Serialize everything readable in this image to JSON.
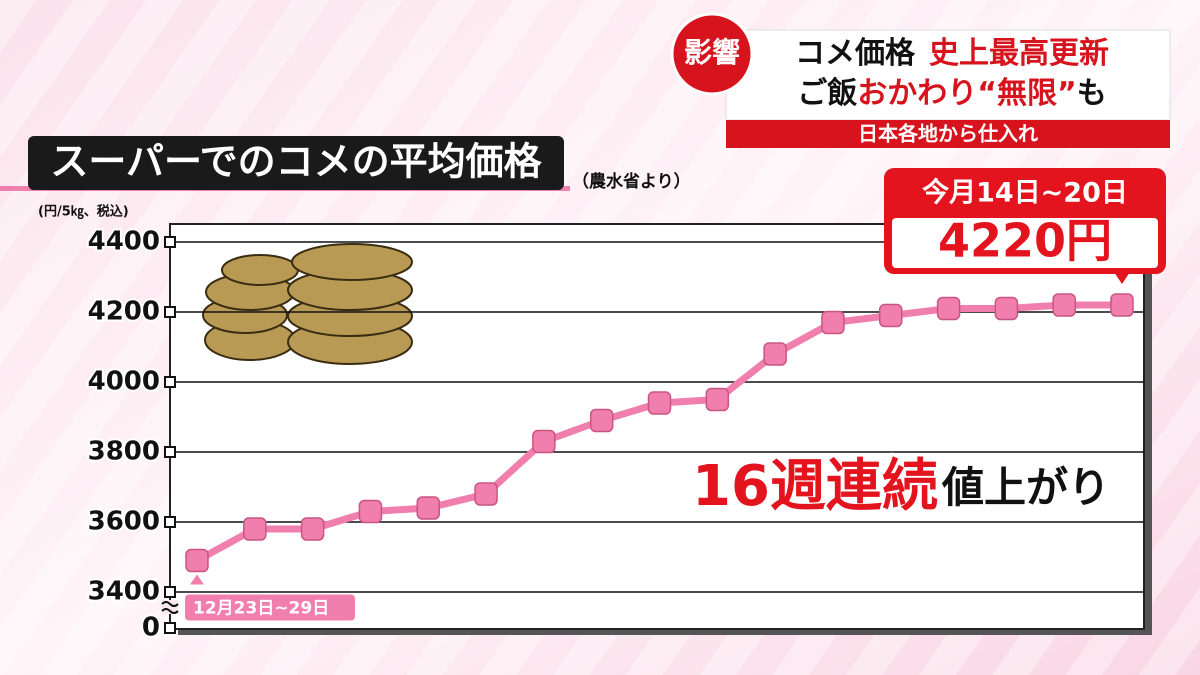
{
  "news_banner": {
    "badge": "影響",
    "line1": [
      "コメ価格",
      "史上最高更新"
    ],
    "line2": [
      "ご飯",
      "おかわり“無限”",
      "も"
    ],
    "subline": "日本各地から仕入れ"
  },
  "chart_data": {
    "type": "line",
    "title": "スーパーでのコメの平均価格",
    "source": "（農水省より）",
    "y_label": "(円/5㎏、税込)",
    "categories": [
      "12月23日~29日",
      null,
      null,
      null,
      null,
      null,
      null,
      null,
      null,
      null,
      null,
      null,
      null,
      null,
      null,
      null,
      "今月14日~20日"
    ],
    "series": [
      {
        "name": "平均価格",
        "color": "#f07fae",
        "values": [
          3490,
          3580,
          3580,
          3630,
          3640,
          3680,
          3830,
          3890,
          3940,
          3950,
          4080,
          4170,
          4190,
          4210,
          4210,
          4220,
          4220
        ],
        "value_labels": [
          null,
          null,
          null,
          null,
          null,
          null,
          null,
          null,
          null,
          null,
          null,
          null,
          null,
          null,
          null,
          null,
          "4220円"
        ]
      }
    ],
    "ylim": [
      3400,
      4400
    ],
    "yticks": [
      0,
      3400,
      3600,
      3800,
      4000,
      4200,
      4400
    ],
    "axis_break": true,
    "grid": true,
    "annotation": [
      "16週連続",
      "値上がり"
    ]
  }
}
